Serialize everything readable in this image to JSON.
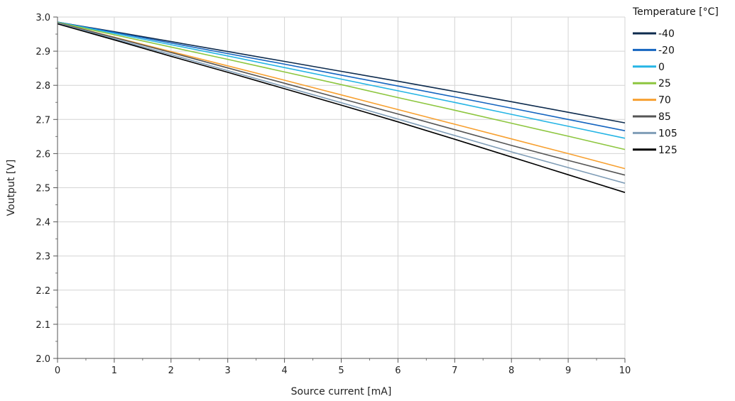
{
  "chart_data": {
    "type": "line",
    "title": "",
    "xlabel": "Source current [mA]",
    "ylabel": "Voutput [V]",
    "xlim": [
      0,
      10
    ],
    "ylim": [
      2.0,
      3.0
    ],
    "x_ticks": [
      "0",
      "1",
      "2",
      "3",
      "4",
      "5",
      "6",
      "7",
      "8",
      "9",
      "10"
    ],
    "y_ticks": [
      "2.0",
      "2.1",
      "2.2",
      "2.3",
      "2.4",
      "2.5",
      "2.6",
      "2.7",
      "2.8",
      "2.9",
      "3.0"
    ],
    "grid": true,
    "legend_title": "Temperature [°C]",
    "legend_position": "right",
    "x": [
      0,
      1,
      2,
      3,
      4,
      5,
      6,
      7,
      8,
      9,
      10
    ],
    "series": [
      {
        "name": "-40",
        "color": "#0d2b4e",
        "values": [
          2.985,
          2.957,
          2.928,
          2.899,
          2.87,
          2.841,
          2.812,
          2.782,
          2.752,
          2.721,
          2.69
        ]
      },
      {
        "name": "-20",
        "color": "#1565c0",
        "values": [
          2.985,
          2.955,
          2.924,
          2.893,
          2.862,
          2.83,
          2.798,
          2.766,
          2.733,
          2.7,
          2.667
        ]
      },
      {
        "name": "0",
        "color": "#26b5e5",
        "values": [
          2.985,
          2.952,
          2.919,
          2.886,
          2.852,
          2.818,
          2.784,
          2.75,
          2.715,
          2.68,
          2.645
        ]
      },
      {
        "name": "25",
        "color": "#8dc63f",
        "values": [
          2.984,
          2.948,
          2.912,
          2.876,
          2.839,
          2.802,
          2.764,
          2.727,
          2.689,
          2.651,
          2.612
        ]
      },
      {
        "name": "70",
        "color": "#f7a030",
        "values": [
          2.983,
          2.941,
          2.899,
          2.857,
          2.815,
          2.772,
          2.729,
          2.686,
          2.643,
          2.6,
          2.556
        ]
      },
      {
        "name": "85",
        "color": "#555555",
        "values": [
          2.983,
          2.94,
          2.896,
          2.851,
          2.806,
          2.761,
          2.716,
          2.67,
          2.624,
          2.58,
          2.537
        ]
      },
      {
        "name": "105",
        "color": "#7f9db7",
        "values": [
          2.982,
          2.936,
          2.89,
          2.843,
          2.796,
          2.749,
          2.701,
          2.653,
          2.605,
          2.559,
          2.513
        ]
      },
      {
        "name": "125",
        "color": "#000000",
        "values": [
          2.98,
          2.933,
          2.885,
          2.838,
          2.79,
          2.742,
          2.693,
          2.642,
          2.59,
          2.538,
          2.486
        ]
      }
    ]
  }
}
